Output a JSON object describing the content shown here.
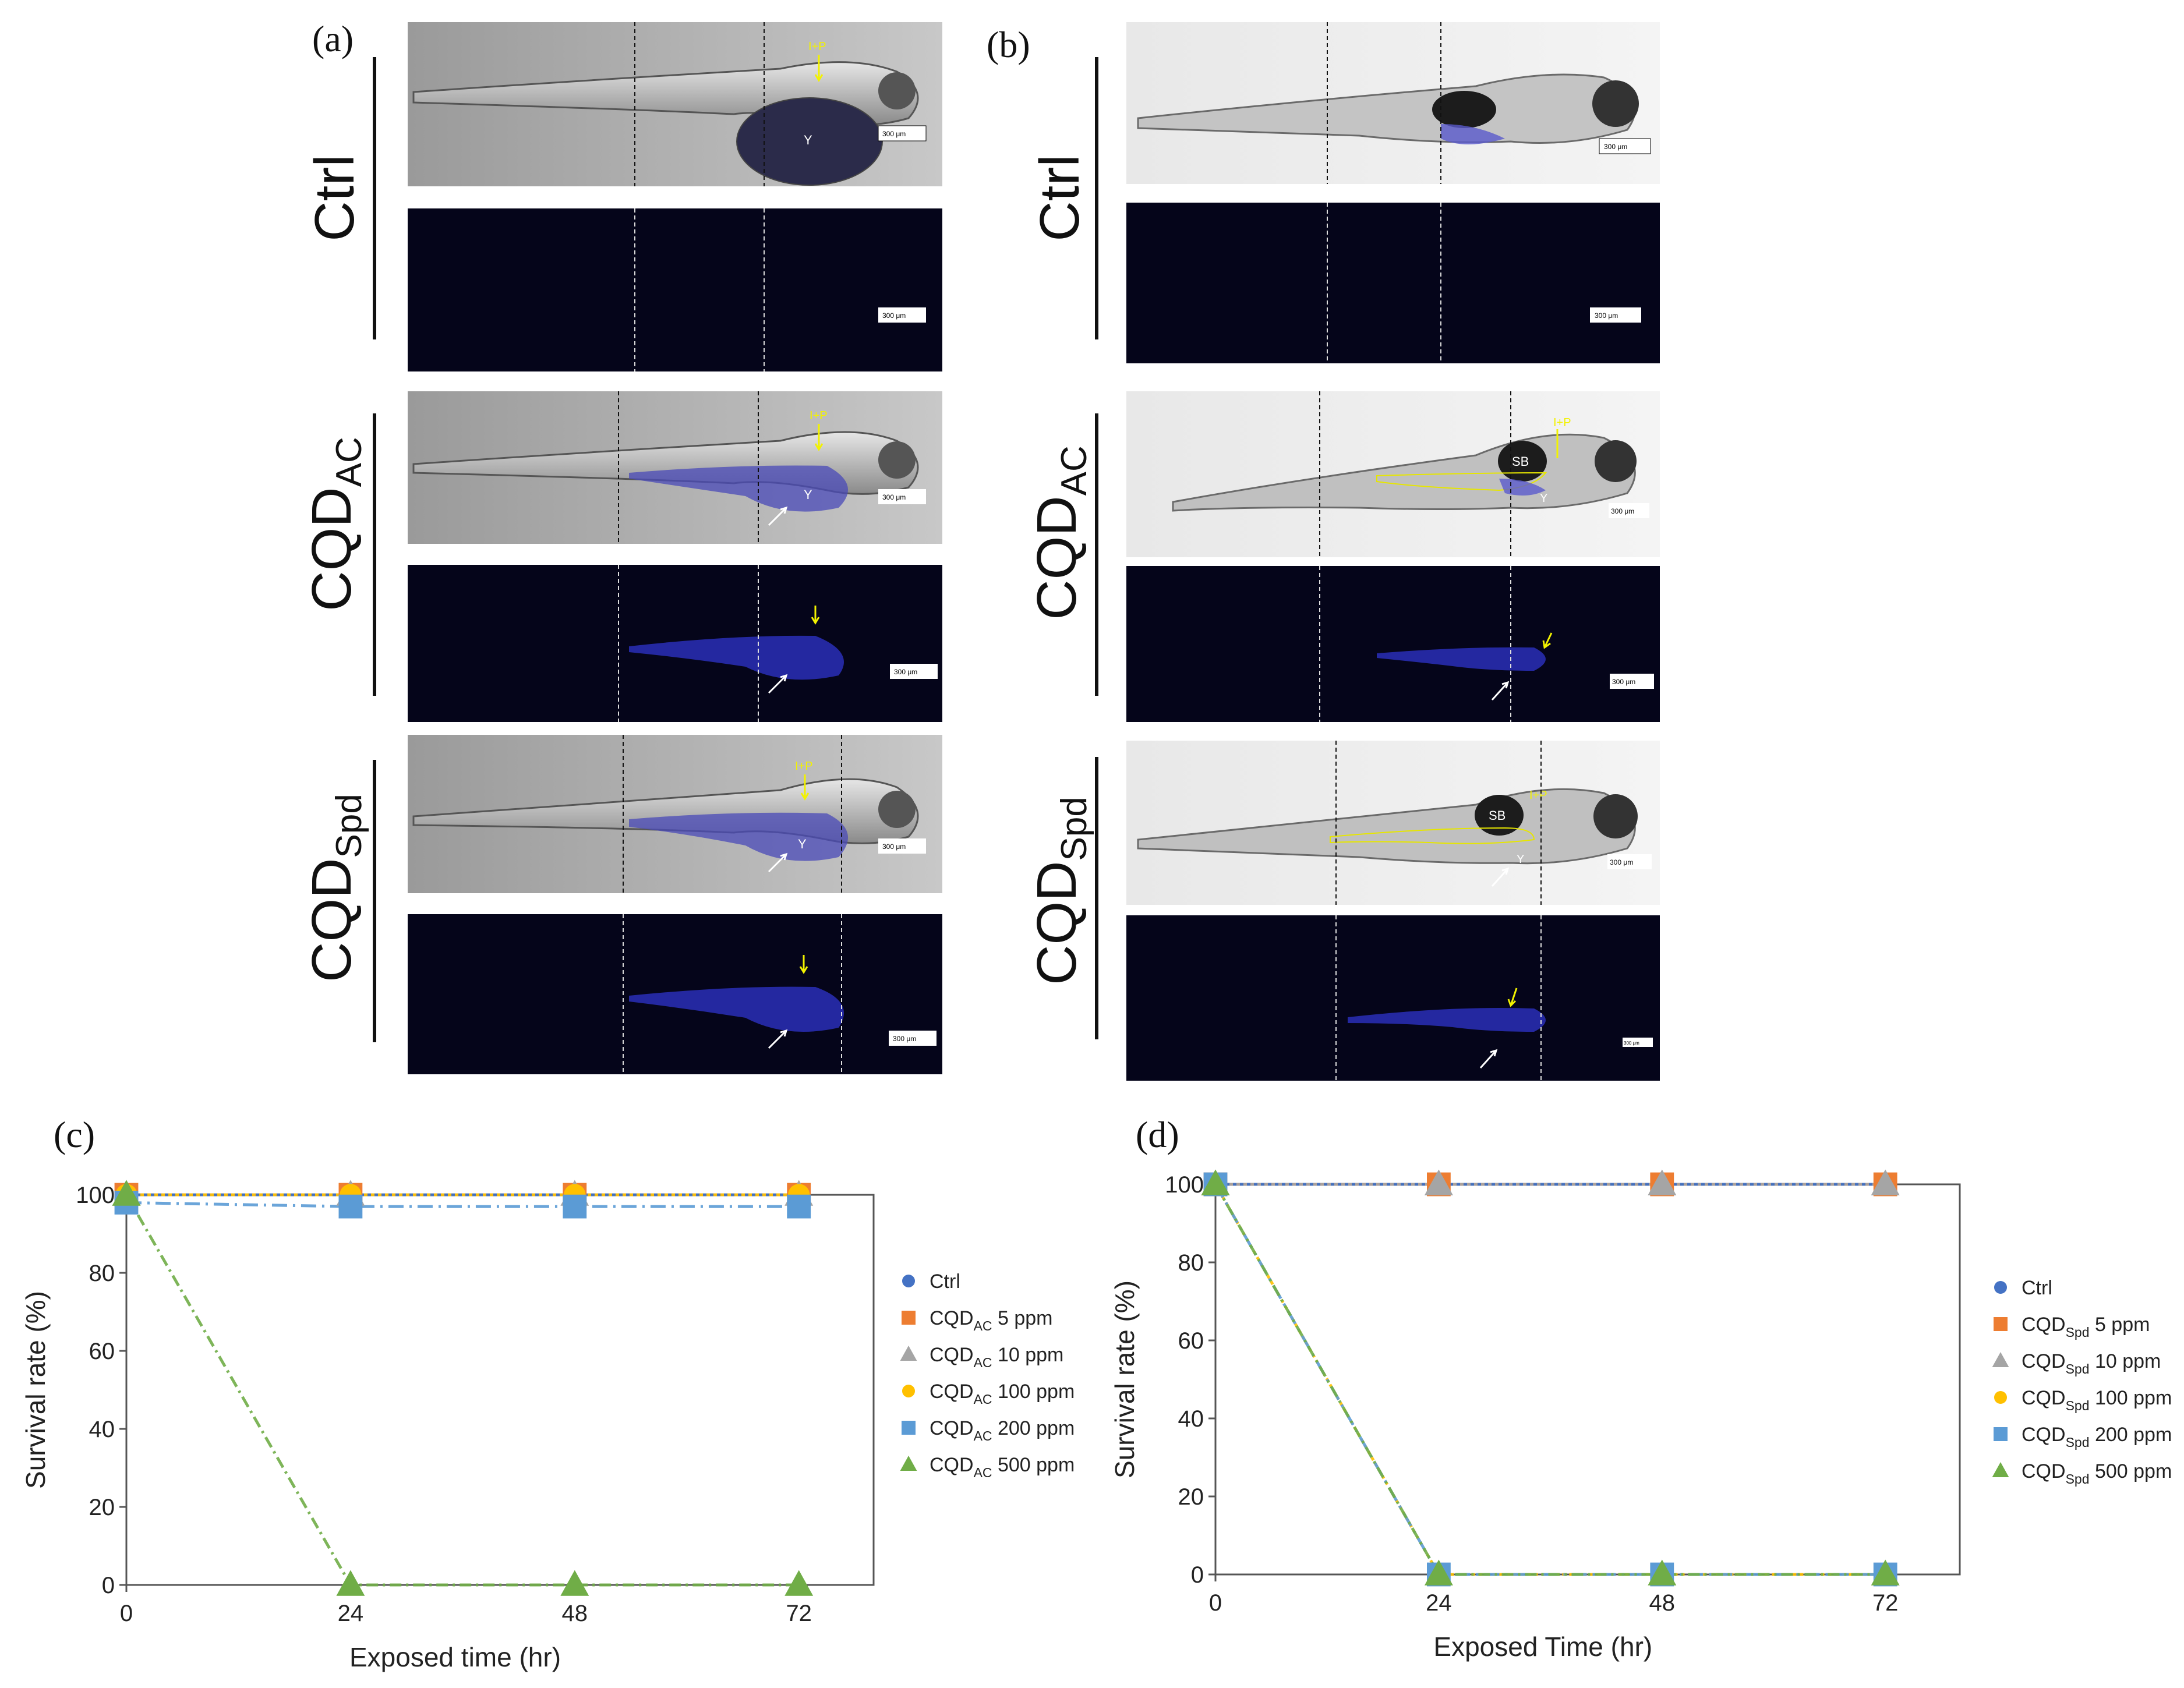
{
  "figure": {
    "panel_a": {
      "letter": "(a)",
      "groups": [
        {
          "label": "Ctrl",
          "sub": ""
        },
        {
          "label": "CQD",
          "sub": "AC"
        },
        {
          "label": "CQD",
          "sub": "Spd"
        }
      ],
      "annotations": {
        "ip": "I+P",
        "yolk": "Y",
        "scale": "300 μm"
      }
    },
    "panel_b": {
      "letter": "(b)",
      "groups": [
        {
          "label": "Ctrl",
          "sub": ""
        },
        {
          "label": "CQD",
          "sub": "AC"
        },
        {
          "label": "CQD",
          "sub": "Spd"
        }
      ],
      "annotations": {
        "ip": "I+P",
        "yolk": "Y",
        "swim_bladder": "SB",
        "scale": "300 μm"
      }
    },
    "panel_c": {
      "letter": "(c)"
    },
    "panel_d": {
      "letter": "(d)"
    }
  },
  "colors": {
    "ctrl": "#4472C4",
    "c5": "#ED7D31",
    "c10": "#A5A5A5",
    "c100": "#FFC000",
    "c200": "#5B9BD5",
    "c500": "#70AD47",
    "fluor_bg": "#05051a",
    "fluor_blue": "#2a2fb8",
    "annot_yellow": "#f2f200"
  },
  "chart_data": [
    {
      "type": "line",
      "panel": "(c)",
      "xlabel": "Exposed time (hr)",
      "ylabel": "Survival rate (%)",
      "x": [
        0,
        24,
        48,
        72
      ],
      "xticks": [
        "0",
        "24",
        "48",
        "72"
      ],
      "yticks": [
        "0",
        "20",
        "40",
        "60",
        "80",
        "100"
      ],
      "xlim": [
        0,
        80
      ],
      "ylim": [
        0,
        100
      ],
      "series": [
        {
          "name": "Ctrl",
          "prefix": "Ctrl",
          "sub": "",
          "suffix": "",
          "marker": "circle",
          "color": "#4472C4",
          "values": [
            100,
            100,
            100,
            100
          ]
        },
        {
          "name": "CQDAC 5 ppm",
          "prefix": "CQD",
          "sub": "AC",
          "suffix": " 5 ppm",
          "marker": "square",
          "color": "#ED7D31",
          "values": [
            100,
            100,
            100,
            100
          ]
        },
        {
          "name": "CQDAC 10 ppm",
          "prefix": "CQD",
          "sub": "AC",
          "suffix": " 10 ppm",
          "marker": "triangle",
          "color": "#A5A5A5",
          "values": [
            100,
            100,
            100,
            100
          ]
        },
        {
          "name": "CQDAC 100 ppm",
          "prefix": "CQD",
          "sub": "AC",
          "suffix": " 100 ppm",
          "marker": "circle",
          "color": "#FFC000",
          "values": [
            100,
            100,
            100,
            100
          ]
        },
        {
          "name": "CQDAC 200 ppm",
          "prefix": "CQD",
          "sub": "AC",
          "suffix": " 200 ppm",
          "marker": "square",
          "color": "#5B9BD5",
          "values": [
            98,
            97,
            97,
            97
          ]
        },
        {
          "name": "CQDAC 500 ppm",
          "prefix": "CQD",
          "sub": "AC",
          "suffix": " 500 ppm",
          "marker": "triangle",
          "color": "#70AD47",
          "values": [
            100,
            0,
            0,
            0
          ]
        }
      ]
    },
    {
      "type": "line",
      "panel": "(d)",
      "xlabel": "Exposed Time (hr)",
      "ylabel": "Survival rate (%)",
      "x": [
        0,
        24,
        48,
        72
      ],
      "xticks": [
        "0",
        "24",
        "48",
        "72"
      ],
      "yticks": [
        "0",
        "20",
        "40",
        "60",
        "80",
        "100"
      ],
      "xlim": [
        0,
        80
      ],
      "ylim": [
        0,
        100
      ],
      "series": [
        {
          "name": "Ctrl",
          "prefix": "Ctrl",
          "sub": "",
          "suffix": "",
          "marker": "circle",
          "color": "#4472C4",
          "values": [
            100,
            100,
            100,
            100
          ]
        },
        {
          "name": "CQDSpd 5 ppm",
          "prefix": "CQD",
          "sub": "Spd",
          "suffix": " 5 ppm",
          "marker": "square",
          "color": "#ED7D31",
          "values": [
            100,
            100,
            100,
            100
          ]
        },
        {
          "name": "CQDSpd 10 ppm",
          "prefix": "CQD",
          "sub": "Spd",
          "suffix": " 10 ppm",
          "marker": "triangle",
          "color": "#A5A5A5",
          "values": [
            100,
            100,
            100,
            100
          ]
        },
        {
          "name": "CQDSpd 100 ppm",
          "prefix": "CQD",
          "sub": "Spd",
          "suffix": " 100 ppm",
          "marker": "circle",
          "color": "#FFC000",
          "values": [
            100,
            0,
            0,
            0
          ]
        },
        {
          "name": "CQDSpd 200 ppm",
          "prefix": "CQD",
          "sub": "Spd",
          "suffix": " 200 ppm",
          "marker": "square",
          "color": "#5B9BD5",
          "values": [
            100,
            0,
            0,
            0
          ]
        },
        {
          "name": "CQDSpd 500 ppm",
          "prefix": "CQD",
          "sub": "Spd",
          "suffix": " 500 ppm",
          "marker": "triangle",
          "color": "#70AD47",
          "values": [
            100,
            0,
            0,
            0
          ]
        }
      ]
    }
  ]
}
